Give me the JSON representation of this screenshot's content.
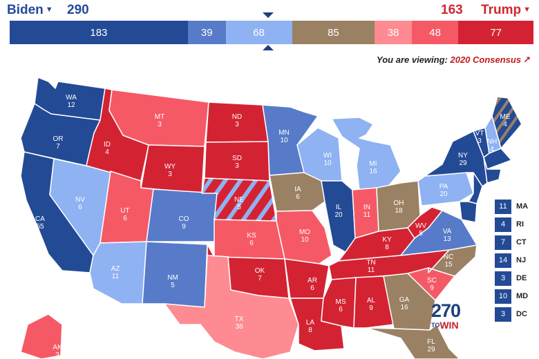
{
  "header": {
    "dem_name": "Biden",
    "rep_name": "Trump",
    "dem_total": "290",
    "rep_total": "163",
    "colors": {
      "dem": "#244999",
      "rep": "#d22532"
    }
  },
  "bar_segments": [
    {
      "value": "183",
      "color": "#234a95",
      "frac": 0.3401
    },
    {
      "value": "39",
      "color": "#577bc8",
      "frac": 0.0725
    },
    {
      "value": "68",
      "color": "#8eb2f2",
      "frac": 0.1264
    },
    {
      "value": "85",
      "color": "#9a8163",
      "frac": 0.158
    },
    {
      "value": "38",
      "color": "#fe8a92",
      "frac": 0.0706
    },
    {
      "value": "48",
      "color": "#f65966",
      "frac": 0.0892
    },
    {
      "value": "77",
      "color": "#d32333",
      "frac": 0.1431
    }
  ],
  "viewing": {
    "prefix": "You are viewing:",
    "link": "2020 Consensus"
  },
  "states": [
    {
      "abbr": "WA",
      "ev": "12"
    },
    {
      "abbr": "OR",
      "ev": "7"
    },
    {
      "abbr": "CA",
      "ev": "55"
    },
    {
      "abbr": "ID",
      "ev": "4"
    },
    {
      "abbr": "NV",
      "ev": "6"
    },
    {
      "abbr": "MT",
      "ev": "3"
    },
    {
      "abbr": "WY",
      "ev": "3"
    },
    {
      "abbr": "UT",
      "ev": "6"
    },
    {
      "abbr": "AZ",
      "ev": "11"
    },
    {
      "abbr": "CO",
      "ev": "9"
    },
    {
      "abbr": "NM",
      "ev": "5"
    },
    {
      "abbr": "ND",
      "ev": "3"
    },
    {
      "abbr": "SD",
      "ev": "3"
    },
    {
      "abbr": "NE",
      "ev": "5"
    },
    {
      "abbr": "KS",
      "ev": "6"
    },
    {
      "abbr": "OK",
      "ev": "7"
    },
    {
      "abbr": "TX",
      "ev": "38"
    },
    {
      "abbr": "MN",
      "ev": "10"
    },
    {
      "abbr": "IA",
      "ev": "6"
    },
    {
      "abbr": "MO",
      "ev": "10"
    },
    {
      "abbr": "AR",
      "ev": "6"
    },
    {
      "abbr": "LA",
      "ev": "8"
    },
    {
      "abbr": "WI",
      "ev": "10"
    },
    {
      "abbr": "IL",
      "ev": "20"
    },
    {
      "abbr": "MI",
      "ev": "16"
    },
    {
      "abbr": "IN",
      "ev": "11"
    },
    {
      "abbr": "OH",
      "ev": "18"
    },
    {
      "abbr": "KY",
      "ev": "8"
    },
    {
      "abbr": "TN",
      "ev": "11"
    },
    {
      "abbr": "MS",
      "ev": "6"
    },
    {
      "abbr": "AL",
      "ev": "9"
    },
    {
      "abbr": "GA",
      "ev": "16"
    },
    {
      "abbr": "FL",
      "ev": "29"
    },
    {
      "abbr": "SC",
      "ev": "9"
    },
    {
      "abbr": "NC",
      "ev": "15"
    },
    {
      "abbr": "VA",
      "ev": "13"
    },
    {
      "abbr": "WV",
      "ev": "5"
    },
    {
      "abbr": "PA",
      "ev": "20"
    },
    {
      "abbr": "NY",
      "ev": "29"
    },
    {
      "abbr": "VT",
      "ev": "3"
    },
    {
      "abbr": "NH",
      "ev": "4"
    },
    {
      "abbr": "ME",
      "ev": "4"
    },
    {
      "abbr": "AK",
      "ev": "3"
    }
  ],
  "small_states": [
    {
      "abbr": "MA",
      "ev": "11",
      "color": "#234a95"
    },
    {
      "abbr": "RI",
      "ev": "4",
      "color": "#234a95"
    },
    {
      "abbr": "CT",
      "ev": "7",
      "color": "#234a95"
    },
    {
      "abbr": "NJ",
      "ev": "14",
      "color": "#234a95"
    },
    {
      "abbr": "DE",
      "ev": "3",
      "color": "#234a95"
    },
    {
      "abbr": "MD",
      "ev": "10",
      "color": "#234a95"
    },
    {
      "abbr": "DC",
      "ev": "3",
      "color": "#234a95"
    }
  ],
  "logo": {
    "number": "270",
    "to": "TO",
    "win": "WIN"
  }
}
